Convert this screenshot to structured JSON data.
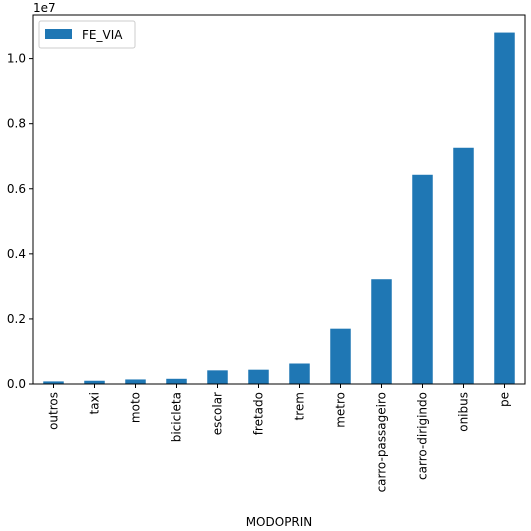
{
  "chart_data": {
    "type": "bar",
    "categories": [
      "outros",
      "taxi",
      "moto",
      "bicicleta",
      "escolar",
      "fretado",
      "trem",
      "metro",
      "carro-passageiro",
      "carro-dirigindo",
      "onibus",
      "pe"
    ],
    "series": [
      {
        "name": "FE_VIA",
        "values": [
          80000,
          100000,
          140000,
          160000,
          420000,
          440000,
          630000,
          1700000,
          3220000,
          6430000,
          7260000,
          10800000
        ],
        "color": "#1f77b4"
      }
    ],
    "title": "",
    "xlabel": "MODOPRIN",
    "ylabel": "",
    "ylim": [
      0,
      11340000
    ],
    "y_ticks": [
      0,
      2000000,
      4000000,
      6000000,
      8000000,
      10000000
    ],
    "y_tick_labels": [
      "0.0",
      "0.2",
      "0.4",
      "0.6",
      "0.8",
      "1.0"
    ],
    "y_offset_label": "1e7",
    "legend_position": "top-left",
    "grid": false
  }
}
